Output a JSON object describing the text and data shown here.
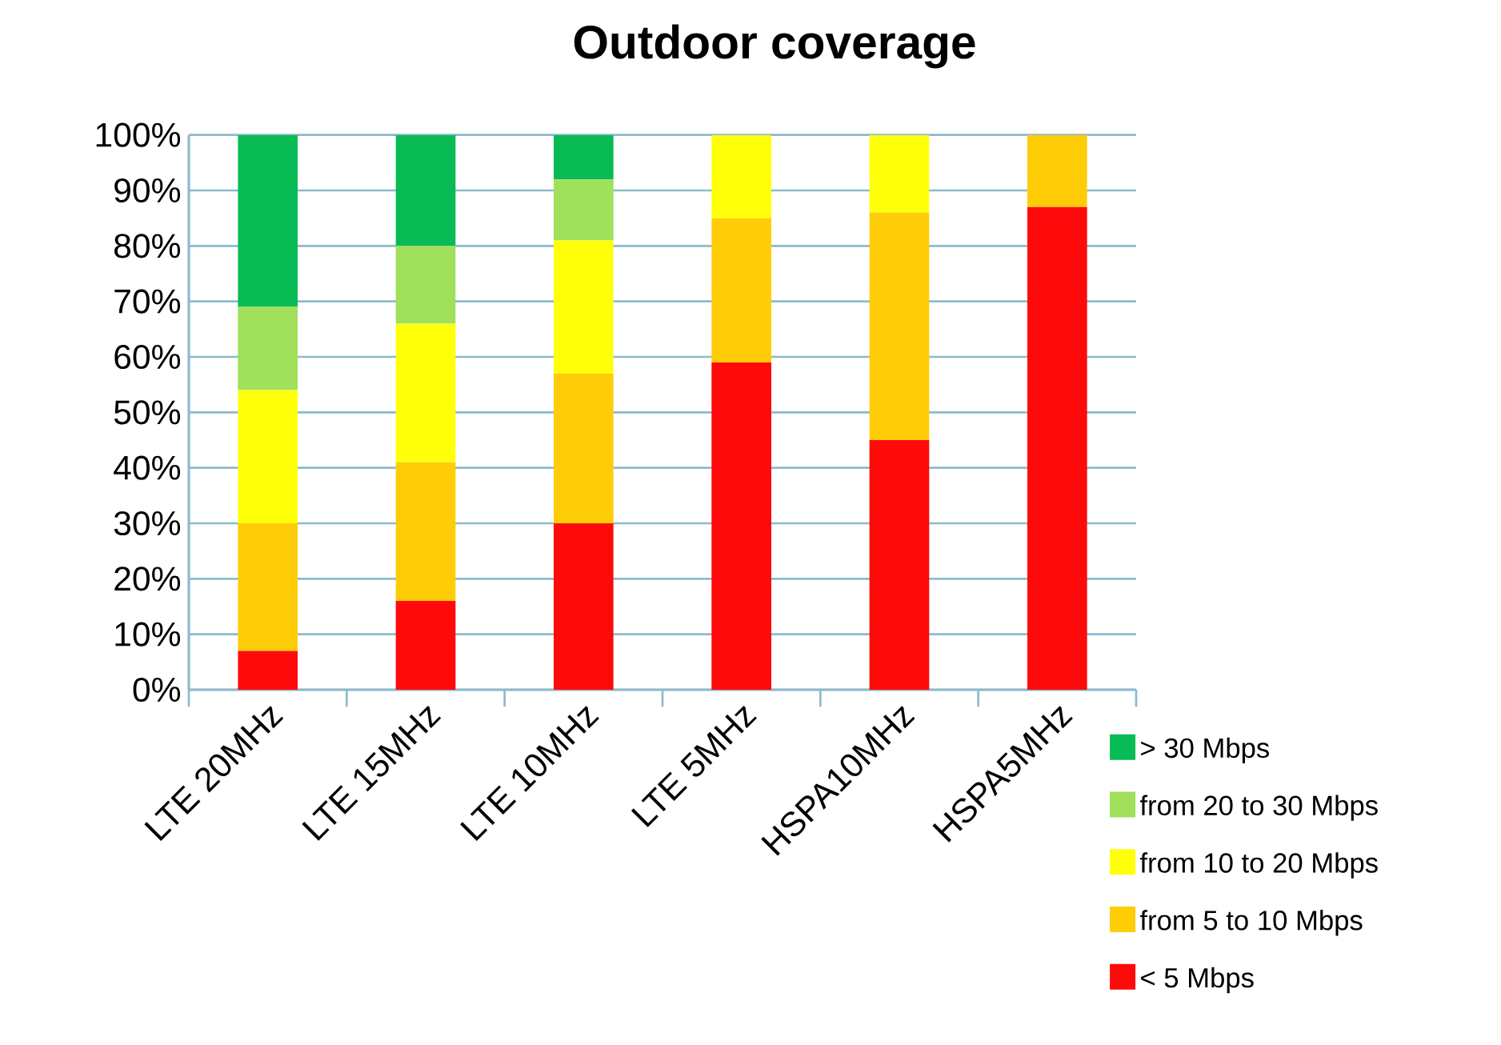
{
  "chart_data": {
    "type": "bar",
    "title": "Outdoor coverage",
    "stacked": true,
    "categories": [
      "LTE 20MHz",
      "LTE 15MHz",
      "LTE 10MHz",
      "LTE 5MHz",
      "HSPA10MHz",
      "HSPA5MHz"
    ],
    "series": [
      {
        "name": "< 5 Mbps",
        "color": "#ff0a0a",
        "values": [
          7,
          16,
          30,
          59,
          45,
          87
        ]
      },
      {
        "name": "from 5 to 10 Mbps",
        "color": "#ffcc08",
        "values": [
          23,
          25,
          27,
          26,
          41,
          13
        ]
      },
      {
        "name": "from 10 to 20 Mbps",
        "color": "#ffff0a",
        "values": [
          24,
          25,
          24,
          15,
          14,
          null
        ]
      },
      {
        "name": "from 20 to 30 Mbps",
        "color": "#a0e05a",
        "values": [
          15,
          14,
          11,
          null,
          null,
          null
        ]
      },
      {
        "name": "> 30 Mbps",
        "color": "#08bb55",
        "values": [
          31,
          20,
          8,
          null,
          null,
          null
        ]
      }
    ],
    "ylim": [
      0,
      100
    ],
    "yticks": [
      {
        "value": 0,
        "label": "0%"
      },
      {
        "value": 10,
        "label": "10%"
      },
      {
        "value": 20,
        "label": "20%"
      },
      {
        "value": 30,
        "label": "30%"
      },
      {
        "value": 40,
        "label": "40%"
      },
      {
        "value": 50,
        "label": "50%"
      },
      {
        "value": 60,
        "label": "60%"
      },
      {
        "value": 70,
        "label": "70%"
      },
      {
        "value": 80,
        "label": "80%"
      },
      {
        "value": 90,
        "label": "90%"
      },
      {
        "value": 100,
        "label": "100%"
      }
    ],
    "grid": "y",
    "legend": "bottom right"
  }
}
